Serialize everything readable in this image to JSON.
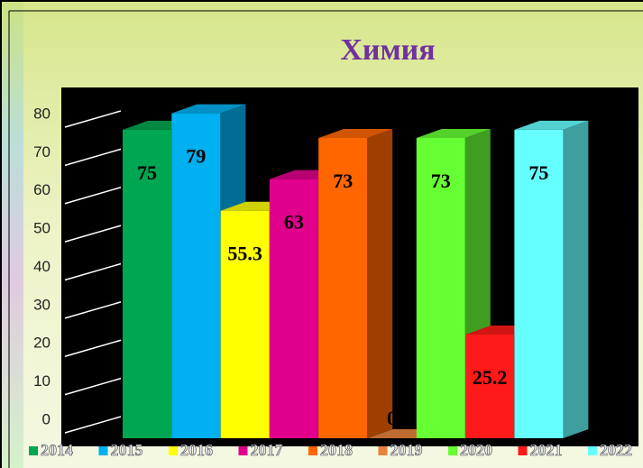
{
  "chart_data": {
    "type": "bar3d",
    "title": "Химия",
    "categories": [
      "2014",
      "2015",
      "2016",
      "2017",
      "2018",
      "2019",
      "2020",
      "2021",
      "2022"
    ],
    "values": [
      75,
      79,
      55.3,
      63,
      73,
      0,
      73,
      25.2,
      75
    ],
    "colors": [
      "#00a651",
      "#00b0f0",
      "#ffff00",
      "#e0008c",
      "#ff6600",
      "#e8823a",
      "#66ff33",
      "#ff1a1a",
      "#66ffff"
    ],
    "ylim": [
      0,
      80
    ],
    "yticks": [
      0,
      10,
      20,
      30,
      40,
      50,
      60,
      70,
      80
    ],
    "grid": true,
    "legend": "bottom"
  }
}
